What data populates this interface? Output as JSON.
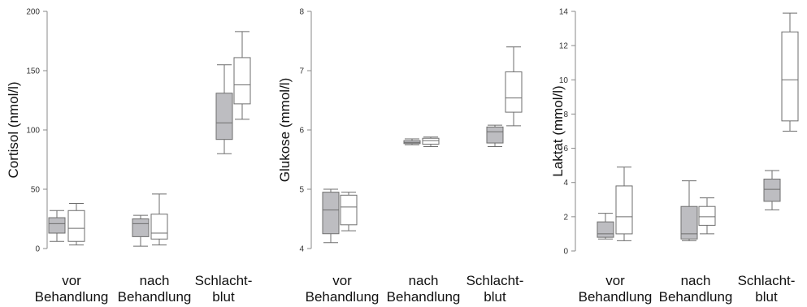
{
  "chart_data": [
    {
      "type": "box",
      "ylabel": "Cortisol (nmol/l)",
      "ylim": [
        0,
        200
      ],
      "yticks": [
        0,
        50,
        100,
        150,
        200
      ],
      "categories": [
        [
          "vor",
          "Behandlung"
        ],
        [
          "nach",
          "Behandlung"
        ],
        [
          "Schlacht-",
          "blut"
        ]
      ],
      "series": [
        {
          "fill": "#bdbdc1",
          "boxes": [
            {
              "min": 6,
              "q1": 13,
              "median": 21,
              "q3": 26,
              "max": 32
            },
            {
              "min": 2,
              "q1": 10,
              "median": 21,
              "q3": 25,
              "max": 28
            },
            {
              "min": 80,
              "q1": 92,
              "median": 106,
              "q3": 131,
              "max": 155
            }
          ]
        },
        {
          "fill": "#ffffff",
          "boxes": [
            {
              "min": 3,
              "q1": 6,
              "median": 17,
              "q3": 32,
              "max": 38
            },
            {
              "min": 3,
              "q1": 8,
              "median": 13,
              "q3": 29,
              "max": 46
            },
            {
              "min": 109,
              "q1": 122,
              "median": 138,
              "q3": 161,
              "max": 183
            }
          ]
        }
      ]
    },
    {
      "type": "box",
      "ylabel": "Glukose (mmol/l)",
      "ylim": [
        4,
        8
      ],
      "yticks": [
        4,
        5,
        6,
        7,
        8
      ],
      "categories": [
        [
          "vor",
          "Behandlung"
        ],
        [
          "nach",
          "Behandlung"
        ],
        [
          "Schlacht-",
          "blut"
        ]
      ],
      "series": [
        {
          "fill": "#bdbdc1",
          "boxes": [
            {
              "min": 4.1,
              "q1": 4.25,
              "median": 4.65,
              "q3": 4.95,
              "max": 5.0
            },
            {
              "min": 5.75,
              "q1": 5.77,
              "median": 5.79,
              "q3": 5.82,
              "max": 5.85
            },
            {
              "min": 5.72,
              "q1": 5.78,
              "median": 5.97,
              "q3": 6.05,
              "max": 6.08
            }
          ]
        },
        {
          "fill": "#ffffff",
          "boxes": [
            {
              "min": 4.3,
              "q1": 4.4,
              "median": 4.7,
              "q3": 4.9,
              "max": 4.95
            },
            {
              "min": 5.72,
              "q1": 5.76,
              "median": 5.82,
              "q3": 5.86,
              "max": 5.88
            },
            {
              "min": 6.07,
              "q1": 6.3,
              "median": 6.54,
              "q3": 6.98,
              "max": 7.4
            }
          ]
        }
      ]
    },
    {
      "type": "box",
      "ylabel": "Laktat (mmol/l)",
      "ylim": [
        0,
        14
      ],
      "yticks": [
        0,
        2,
        4,
        6,
        8,
        10,
        12,
        14
      ],
      "categories": [
        [
          "vor",
          "Behandlung"
        ],
        [
          "nach",
          "Behandlung"
        ],
        [
          "Schlacht-",
          "blut"
        ]
      ],
      "series": [
        {
          "fill": "#bdbdc1",
          "boxes": [
            {
              "min": 0.7,
              "q1": 0.8,
              "median": 1.0,
              "q3": 1.7,
              "max": 2.2
            },
            {
              "min": 0.6,
              "q1": 0.7,
              "median": 1.0,
              "q3": 2.6,
              "max": 4.1
            },
            {
              "min": 2.4,
              "q1": 2.9,
              "median": 3.6,
              "q3": 4.2,
              "max": 4.7
            }
          ]
        },
        {
          "fill": "#ffffff",
          "boxes": [
            {
              "min": 0.6,
              "q1": 1.0,
              "median": 2.0,
              "q3": 3.8,
              "max": 4.9
            },
            {
              "min": 1.0,
              "q1": 1.5,
              "median": 2.0,
              "q3": 2.6,
              "max": 3.1
            },
            {
              "min": 7.0,
              "q1": 7.6,
              "median": 10.0,
              "q3": 12.8,
              "max": 13.9
            }
          ]
        }
      ]
    }
  ]
}
